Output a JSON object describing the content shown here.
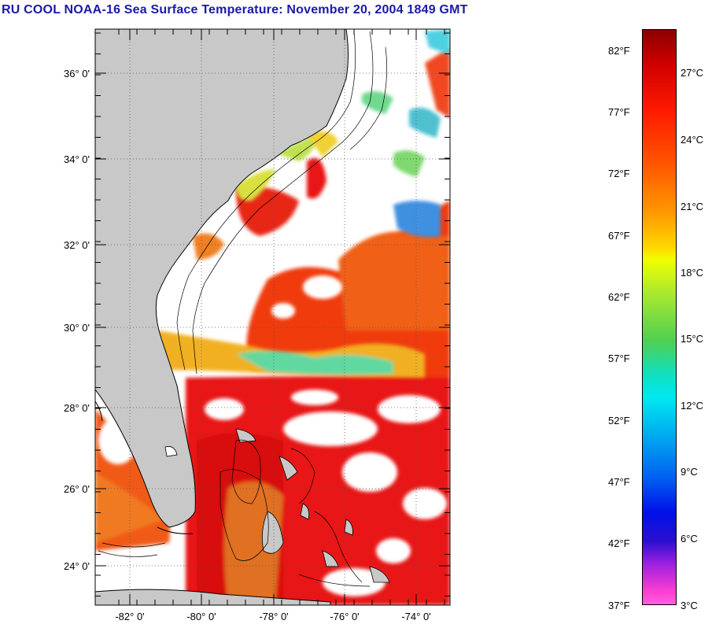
{
  "title": "RU COOL  NOAA-16  Sea Surface Temperature:  November 20, 2004 1849 GMT",
  "map": {
    "lat_labels": [
      "36° 0'",
      "34° 0'",
      "32° 0'",
      "30° 0'",
      "28° 0'",
      "26° 0'",
      "24° 0'"
    ],
    "lon_labels": [
      "-82° 0'",
      "-80° 0'",
      "-78° 0'",
      "-76° 0'",
      "-74° 0'"
    ],
    "land_color": "#c8c8c8",
    "cloud_color": "#ffffff"
  },
  "colorbar": {
    "f_labels": [
      "82°F",
      "77°F",
      "72°F",
      "67°F",
      "62°F",
      "57°F",
      "52°F",
      "47°F",
      "42°F",
      "37°F"
    ],
    "c_labels": [
      "27°C",
      "24°C",
      "21°C",
      "18°C",
      "15°C",
      "12°C",
      "9°C",
      "6°C",
      "3°C"
    ]
  }
}
